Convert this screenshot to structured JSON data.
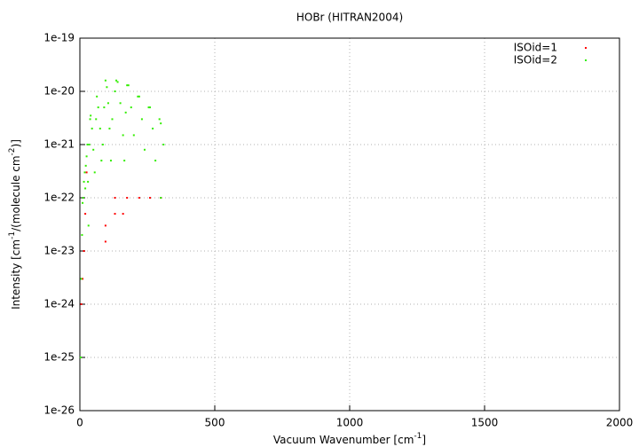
{
  "chart_data": {
    "type": "scatter",
    "title": "HOBr (HITRAN2004)",
    "xlabel_parts": [
      "Vacuum Wavenumber [cm",
      "-1",
      "]"
    ],
    "ylabel_parts": [
      "Intensity [cm",
      "-1",
      "/(molecule cm",
      "-2",
      ")]"
    ],
    "xlim": [
      0,
      2000
    ],
    "xticks": [
      0,
      500,
      1000,
      1500,
      2000
    ],
    "ylim": [
      1e-26,
      1e-19
    ],
    "log_y": true,
    "grid": true,
    "legend": "upper-right",
    "yticks": [
      {
        "value": 1e-26,
        "label": "1e-26"
      },
      {
        "value": 1e-25,
        "label": "1e-25"
      },
      {
        "value": 1e-24,
        "label": "1e-24"
      },
      {
        "value": 1e-23,
        "label": "1e-23"
      },
      {
        "value": 1e-22,
        "label": "1e-22"
      },
      {
        "value": 1e-21,
        "label": "1e-21"
      },
      {
        "value": 1e-20,
        "label": "1e-20"
      },
      {
        "value": 1e-19,
        "label": "1e-19"
      }
    ],
    "series": [
      {
        "name": "ISOid=1",
        "color": "#ff0000",
        "x": [
          5,
          10,
          15,
          20,
          25,
          95,
          95,
          130,
          130,
          160,
          175,
          220,
          260,
          300
        ],
        "values": [
          1e-24,
          3e-24,
          1e-23,
          5e-23,
          3e-22,
          1.5e-23,
          3e-23,
          5e-23,
          1e-22,
          5e-23,
          1e-22,
          1e-22,
          1e-22,
          1e-22
        ]
      },
      {
        "name": "ISOid=2",
        "color": "#33ee00",
        "x": [
          3,
          5,
          8,
          10,
          12,
          15,
          18,
          20,
          22,
          25,
          28,
          30,
          32,
          35,
          38,
          40,
          45,
          50,
          55,
          60,
          63,
          68,
          75,
          80,
          85,
          90,
          95,
          100,
          105,
          110,
          115,
          120,
          130,
          135,
          140,
          150,
          160,
          165,
          170,
          175,
          180,
          190,
          200,
          215,
          220,
          230,
          240,
          255,
          260,
          270,
          280,
          295,
          300,
          310,
          300
        ],
        "values": [
          1e-25,
          3e-24,
          2e-23,
          8e-23,
          1e-22,
          2e-22,
          3e-22,
          1.5e-22,
          4e-22,
          6e-22,
          1e-21,
          2e-22,
          3e-23,
          1e-21,
          3e-21,
          3.5e-21,
          2e-21,
          8e-22,
          3e-22,
          3e-21,
          8e-21,
          5e-21,
          2e-21,
          5e-22,
          1e-21,
          5e-21,
          1.6e-20,
          1.2e-20,
          6e-21,
          2e-21,
          5e-22,
          3e-21,
          1e-20,
          1.6e-20,
          1.5e-20,
          6e-21,
          1.5e-21,
          5e-22,
          4e-21,
          1.3e-20,
          1.3e-20,
          5e-21,
          1.5e-21,
          8e-21,
          8e-21,
          3e-21,
          8e-22,
          5e-21,
          5e-21,
          2e-21,
          5e-22,
          3e-21,
          2.5e-21,
          1e-21,
          1e-22
        ]
      }
    ]
  }
}
